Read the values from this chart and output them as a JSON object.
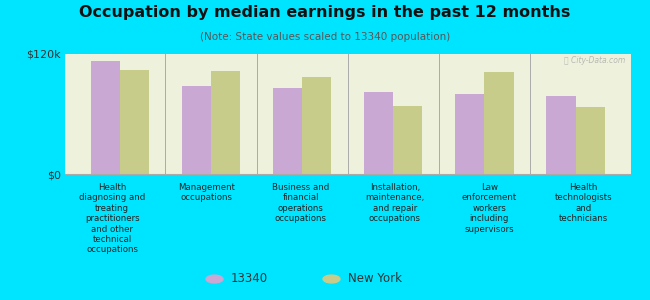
{
  "title": "Occupation by median earnings in the past 12 months",
  "subtitle": "(Note: State values scaled to 13340 population)",
  "categories": [
    "Health\ndiagnosing and\ntreating\npractitioners\nand other\ntechnical\noccupations",
    "Management\noccupations",
    "Business and\nfinancial\noperations\noccupations",
    "Installation,\nmaintenance,\nand repair\noccupations",
    "Law\nenforcement\nworkers\nincluding\nsupervisors",
    "Health\ntechnologists\nand\ntechnicians"
  ],
  "values_13340": [
    113000,
    88000,
    86000,
    82000,
    80000,
    78000
  ],
  "values_ny": [
    104000,
    103000,
    97000,
    68000,
    102000,
    67000
  ],
  "ylim": [
    0,
    120000
  ],
  "ytick_labels": [
    "$0",
    "$120k"
  ],
  "bar_color_13340": "#c9a8d4",
  "bar_color_ny": "#c8cc8a",
  "background_color": "#00e5ff",
  "plot_bg_color": "#eef2dc",
  "legend_13340": "13340",
  "legend_ny": "New York",
  "bar_width": 0.32,
  "watermark": "ⓒ City-Data.com"
}
